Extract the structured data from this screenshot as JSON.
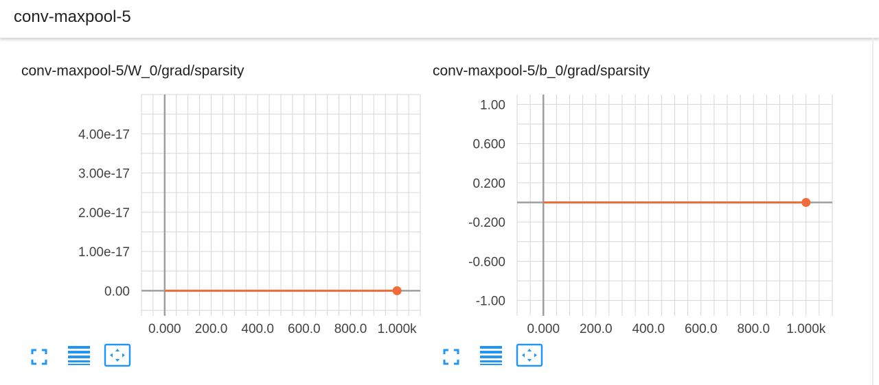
{
  "header": {
    "title": "conv-maxpool-5"
  },
  "colors": {
    "accent": "#f26b3a",
    "toolbar_blue": "#2196f3",
    "grid": "#d6d6d6",
    "axis": "#9e9e9e"
  },
  "toolbar_icons": [
    "fullscreen-icon",
    "toggle-log-scale-icon",
    "fit-domain-icon"
  ],
  "charts": [
    {
      "title": "conv-maxpool-5/W_0/grad/sparsity",
      "x_ticks": [
        "0.000",
        "200.0",
        "400.0",
        "600.0",
        "800.0",
        "1.000k"
      ],
      "y_ticks": [
        "0.00",
        "1.00e-17",
        "2.00e-17",
        "3.00e-17",
        "4.00e-17"
      ]
    },
    {
      "title": "conv-maxpool-5/b_0/grad/sparsity",
      "x_ticks": [
        "0.000",
        "200.0",
        "400.0",
        "600.0",
        "800.0",
        "1.000k"
      ],
      "y_ticks": [
        "-1.00",
        "-0.600",
        "-0.200",
        "0.200",
        "0.600",
        "1.00"
      ]
    }
  ],
  "chart_data": [
    {
      "type": "line",
      "title": "conv-maxpool-5/W_0/grad/sparsity",
      "xlabel": "",
      "ylabel": "",
      "xlim": [
        -100,
        1100
      ],
      "ylim": [
        -5e-18,
        5e-17
      ],
      "series": [
        {
          "x": [
            0,
            1000
          ],
          "y": [
            0,
            0
          ]
        }
      ]
    },
    {
      "type": "line",
      "title": "conv-maxpool-5/b_0/grad/sparsity",
      "xlabel": "",
      "ylabel": "",
      "xlim": [
        -100,
        1100
      ],
      "ylim": [
        -1.1,
        1.1
      ],
      "series": [
        {
          "x": [
            0,
            1000
          ],
          "y": [
            0,
            0
          ]
        }
      ]
    }
  ]
}
